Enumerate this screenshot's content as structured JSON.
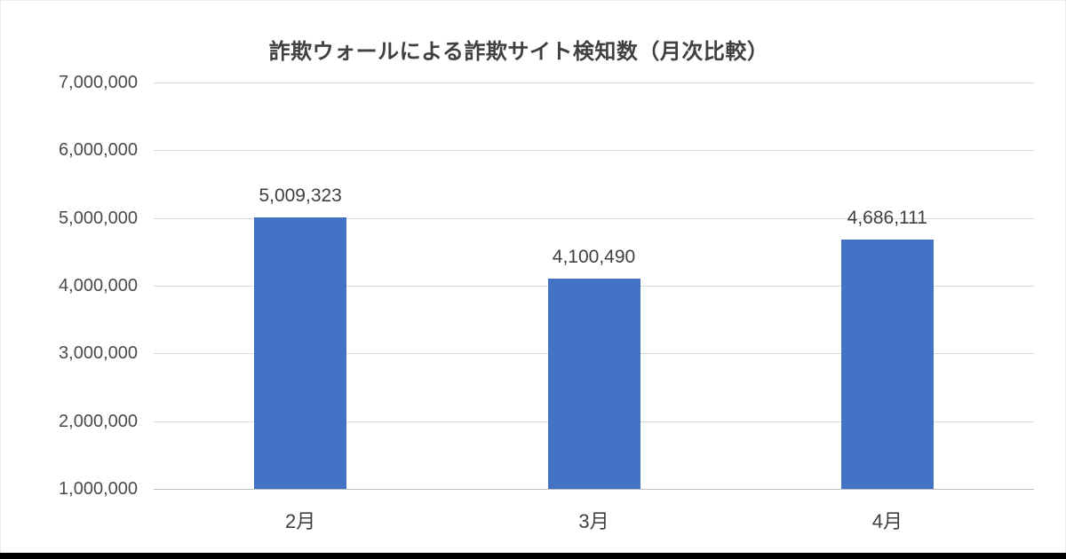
{
  "page": {
    "background": "#ffffff",
    "footer_bar_color": "#000000"
  },
  "chart_data": {
    "type": "bar",
    "title": "詐欺ウォールによる詐欺サイト検知数（月次比較）",
    "categories": [
      "2月",
      "3月",
      "4月"
    ],
    "values": [
      5009323,
      4100490,
      4686111
    ],
    "data_labels": [
      "5,009,323",
      "4,100,490",
      "4,686,111"
    ],
    "y_ticks": [
      1000000,
      2000000,
      3000000,
      4000000,
      5000000,
      6000000,
      7000000
    ],
    "y_tick_labels": [
      "1,000,000",
      "2,000,000",
      "3,000,000",
      "4,000,000",
      "5,000,000",
      "6,000,000",
      "7,000,000"
    ],
    "ylim": [
      1000000,
      7000000
    ],
    "grid": true,
    "legend": false,
    "xlabel": "",
    "ylabel": "",
    "bar_color": "#4472C4"
  }
}
